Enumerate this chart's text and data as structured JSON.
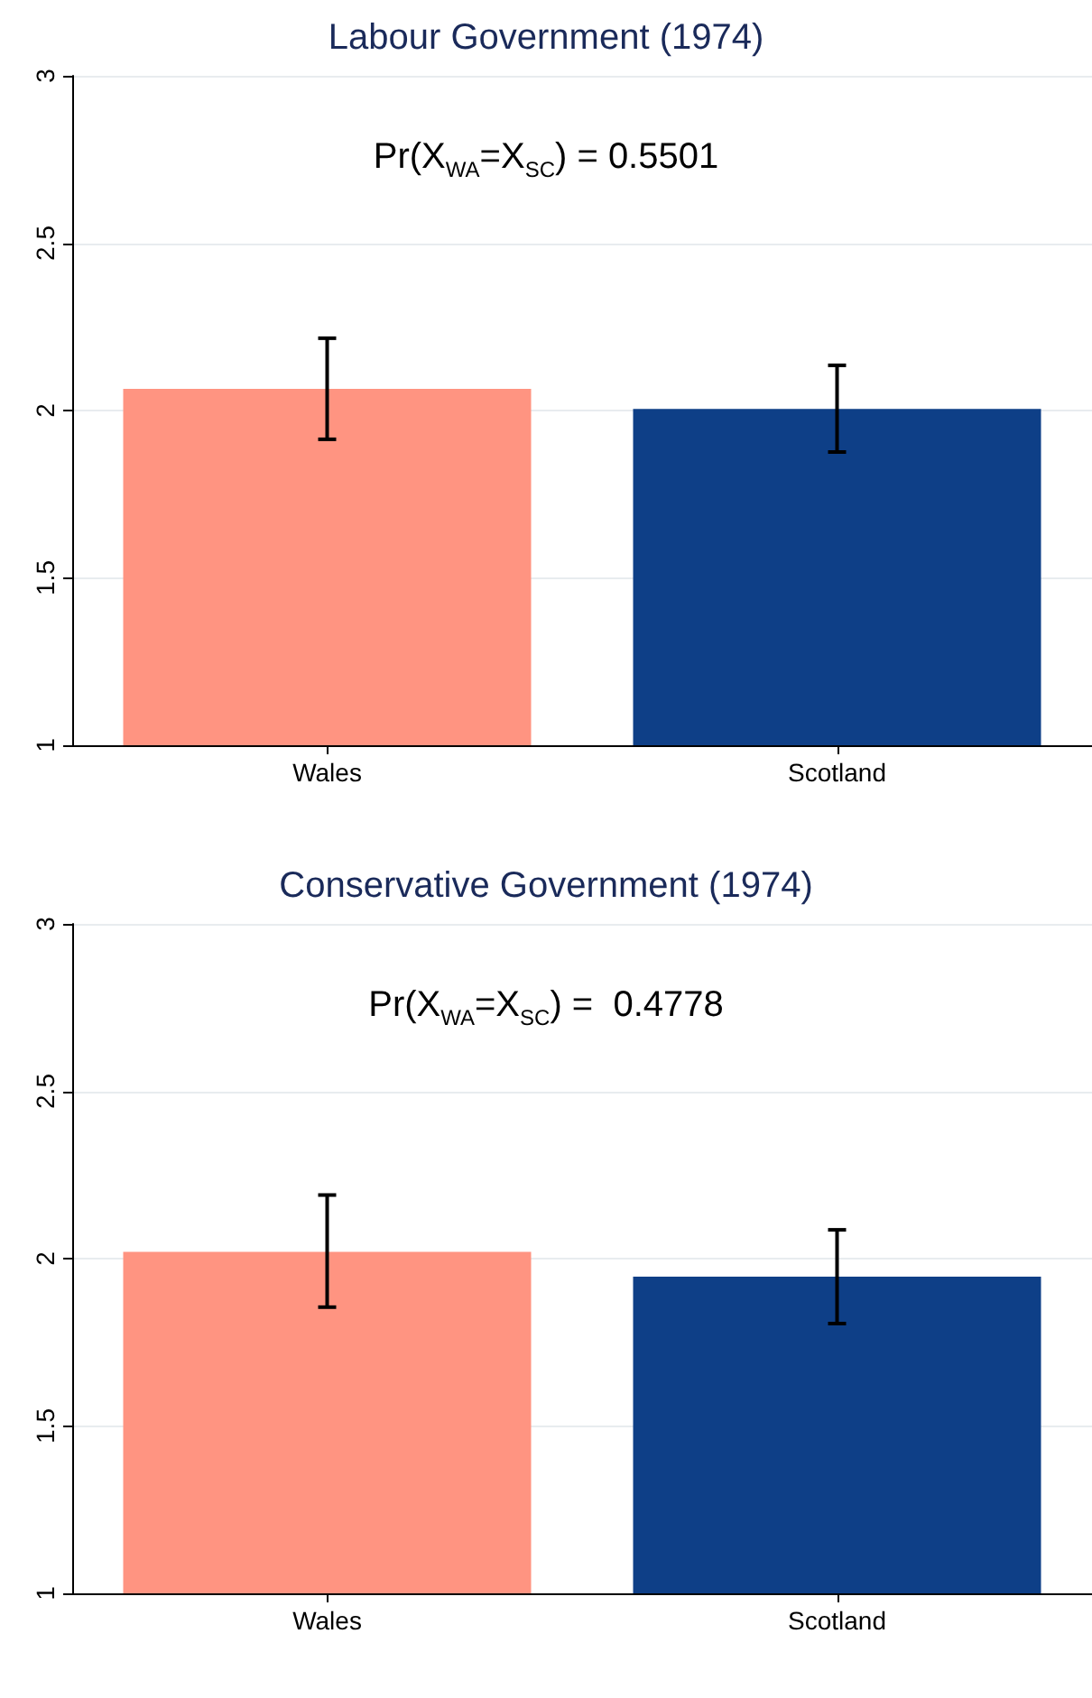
{
  "chart_data": [
    {
      "type": "bar",
      "title": "Labour Government (1974)",
      "categories": [
        "Wales",
        "Scotland"
      ],
      "values": [
        2.065,
        2.005
      ],
      "colors": [
        "#ff9481",
        "#0e3f87"
      ],
      "errors": [
        [
          1.914,
          2.216
        ],
        [
          1.876,
          2.135
        ]
      ],
      "ylim": [
        1,
        3
      ],
      "yticks": [
        1,
        1.5,
        2,
        2.5,
        3
      ],
      "grid": "y",
      "annotations": [
        "Pr(X$_{WA}$=X$_{SC}$) = 0.5501"
      ]
    },
    {
      "type": "bar",
      "title": "Conservative Government (1974)",
      "categories": [
        "Wales",
        "Scotland"
      ],
      "values": [
        2.02,
        1.946
      ],
      "colors": [
        "#ff9481",
        "#0e3f87"
      ],
      "errors": [
        [
          1.855,
          2.19
        ],
        [
          1.806,
          2.086
        ]
      ],
      "ylim": [
        1,
        3
      ],
      "yticks": [
        1,
        1.5,
        2,
        2.5,
        3
      ],
      "grid": "y",
      "annotations": [
        "Pr(X$_{WA}$=X$_{SC}$) =  0.4778"
      ]
    }
  ]
}
